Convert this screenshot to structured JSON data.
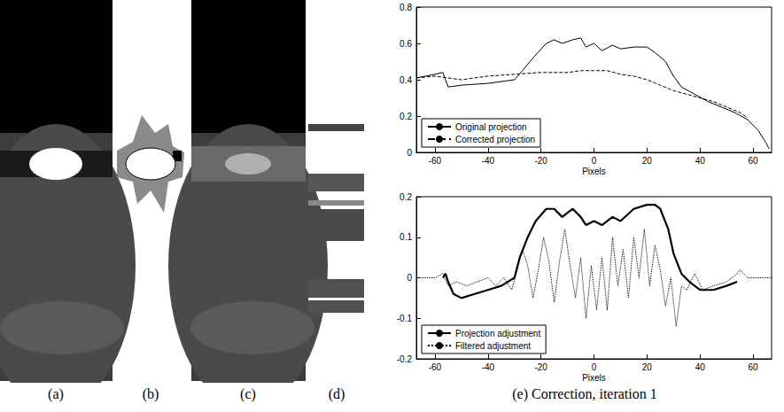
{
  "panel_labels": [
    "(a)",
    "(b)",
    "(c)",
    "(d)"
  ],
  "caption": "(e) Correction, iteration 1",
  "chart_data": [
    {
      "type": "line",
      "xlabel": "Pixels",
      "xlim": [
        -67,
        67
      ],
      "xticks": [
        -60,
        -40,
        -20,
        0,
        20,
        40,
        60
      ],
      "ylim": [
        0,
        0.8
      ],
      "yticks": [
        0,
        0.2,
        0.4,
        0.6,
        0.8
      ],
      "grid": false,
      "legend": "lower left",
      "series": [
        {
          "name": "Original projection",
          "color": "#000000",
          "line_style": "solid",
          "x": [
            -67,
            -60,
            -57,
            -55,
            -50,
            -40,
            -30,
            -27,
            -23,
            -18,
            -15,
            -12,
            -8,
            -5,
            -3,
            0,
            3,
            7,
            10,
            15,
            20,
            23,
            27,
            30,
            33,
            38,
            43,
            48,
            53,
            58,
            62,
            65,
            66
          ],
          "values": [
            0.41,
            0.43,
            0.44,
            0.36,
            0.37,
            0.38,
            0.4,
            0.45,
            0.52,
            0.6,
            0.62,
            0.6,
            0.62,
            0.63,
            0.58,
            0.6,
            0.56,
            0.59,
            0.57,
            0.58,
            0.58,
            0.55,
            0.5,
            0.42,
            0.36,
            0.32,
            0.28,
            0.25,
            0.22,
            0.18,
            0.12,
            0.05,
            0.02
          ]
        },
        {
          "name": "Corrected projection",
          "color": "#000000",
          "line_style": "dashed",
          "x": [
            -67,
            -60,
            -55,
            -50,
            -40,
            -30,
            -20,
            -10,
            -5,
            0,
            5,
            10,
            15,
            20,
            25,
            30,
            35,
            40,
            45,
            50,
            55,
            58
          ],
          "values": [
            0.41,
            0.42,
            0.41,
            0.4,
            0.42,
            0.43,
            0.44,
            0.44,
            0.45,
            0.45,
            0.45,
            0.43,
            0.42,
            0.4,
            0.37,
            0.34,
            0.32,
            0.3,
            0.28,
            0.25,
            0.22,
            0.19
          ]
        }
      ]
    },
    {
      "type": "line",
      "xlabel": "Pixels",
      "xlim": [
        -67,
        67
      ],
      "xticks": [
        -60,
        -40,
        -20,
        0,
        20,
        40,
        60
      ],
      "ylim": [
        -0.2,
        0.2
      ],
      "yticks": [
        -0.2,
        -0.1,
        0,
        0.1,
        0.2
      ],
      "grid": false,
      "legend": "lower left",
      "series": [
        {
          "name": "Projection adjustment",
          "color": "#000000",
          "line_style": "solid",
          "x": [
            -57,
            -56,
            -55,
            -53,
            -50,
            -45,
            -40,
            -35,
            -30,
            -28,
            -25,
            -22,
            -18,
            -15,
            -12,
            -8,
            -5,
            -3,
            0,
            3,
            7,
            10,
            15,
            20,
            23,
            25,
            28,
            30,
            33,
            36,
            40,
            45,
            50,
            54
          ],
          "values": [
            0,
            0.01,
            -0.01,
            -0.04,
            -0.05,
            -0.04,
            -0.03,
            -0.02,
            0,
            0.05,
            0.1,
            0.14,
            0.17,
            0.17,
            0.15,
            0.17,
            0.15,
            0.13,
            0.14,
            0.13,
            0.15,
            0.14,
            0.17,
            0.18,
            0.18,
            0.17,
            0.12,
            0.06,
            0.01,
            -0.01,
            -0.03,
            -0.03,
            -0.02,
            -0.01
          ]
        },
        {
          "name": "Filtered adjustment",
          "color": "#000000",
          "line_style": "dotted",
          "x": [
            -67,
            -60,
            -57,
            -55,
            -52,
            -48,
            -44,
            -40,
            -37,
            -34,
            -31,
            -29,
            -27,
            -25,
            -23,
            -21,
            -19,
            -17,
            -15,
            -13,
            -11,
            -9,
            -7,
            -5,
            -3,
            -1,
            1,
            3,
            5,
            7,
            9,
            11,
            13,
            15,
            17,
            19,
            21,
            23,
            25,
            27,
            29,
            31,
            33,
            35,
            38,
            41,
            45,
            50,
            54,
            55,
            58,
            62,
            67
          ],
          "values": [
            0,
            0,
            0.01,
            -0.02,
            -0.01,
            -0.02,
            -0.01,
            0,
            -0.02,
            0,
            -0.03,
            0.02,
            0.07,
            0.03,
            -0.05,
            0.02,
            0.1,
            0.04,
            -0.06,
            0.04,
            0.12,
            0.03,
            -0.05,
            0.05,
            -0.1,
            0.03,
            -0.08,
            0.05,
            -0.08,
            0.1,
            -0.02,
            0.07,
            -0.05,
            0.1,
            0,
            0.12,
            -0.02,
            0.08,
            0.02,
            -0.07,
            0,
            -0.12,
            -0.02,
            -0.03,
            0.01,
            -0.03,
            -0.02,
            -0.01,
            0.01,
            0.02,
            0,
            0,
            0
          ]
        }
      ]
    }
  ]
}
